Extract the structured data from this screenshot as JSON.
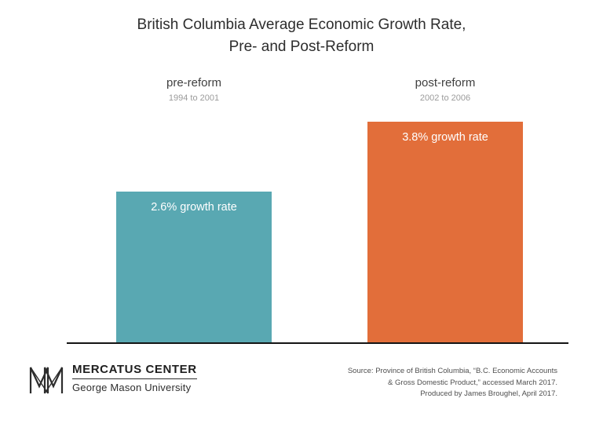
{
  "header": {
    "title_line1": "British Columbia Average Economic Growth Rate,",
    "title_line2": "Pre- and Post-Reform"
  },
  "chart_data": {
    "type": "bar",
    "title": "British Columbia Average Economic Growth Rate, Pre- and Post-Reform",
    "categories": [
      "pre-reform",
      "post-reform"
    ],
    "category_periods": [
      "1994 to 2001",
      "2002 to 2006"
    ],
    "values": [
      2.6,
      3.8
    ],
    "bar_labels": [
      "2.6% growth rate",
      "3.8% growth rate"
    ],
    "colors": [
      "#59A8B2",
      "#E26E3A"
    ],
    "ylabel": "",
    "xlabel": "",
    "ylim": [
      0,
      4.2
    ],
    "unit": "percent growth rate",
    "grid": false,
    "legend_position": "none"
  },
  "footer": {
    "logo": {
      "org_name": "MERCATUS CENTER",
      "org_subtitle": "George Mason University"
    },
    "source_lines": [
      "Source: Province of British Columbia, “B.C. Economic Accounts",
      "& Gross Domestic Product,” accessed March 2017.",
      "Produced by James Broughel, April 2017."
    ]
  }
}
